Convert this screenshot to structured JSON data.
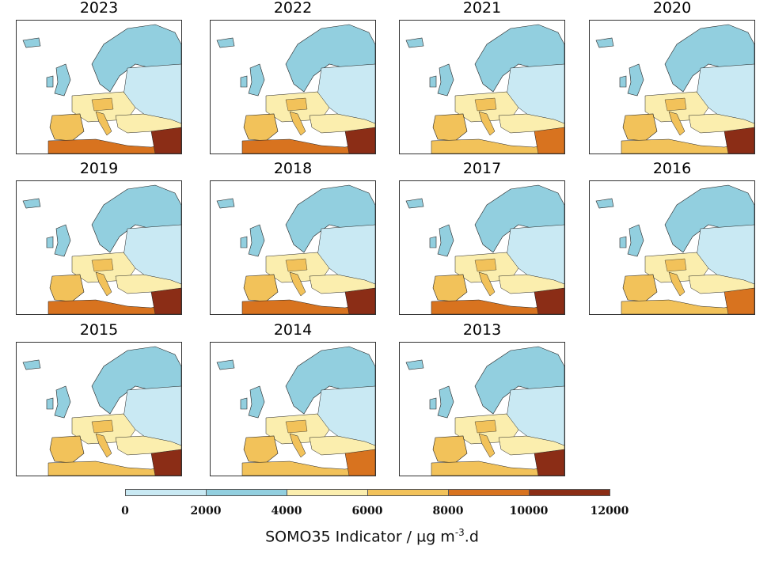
{
  "panels": [
    {
      "year": "2023",
      "intensity": 0.55
    },
    {
      "year": "2022",
      "intensity": 0.55
    },
    {
      "year": "2021",
      "intensity": 0.35
    },
    {
      "year": "2020",
      "intensity": 0.45
    },
    {
      "year": "2019",
      "intensity": 0.55
    },
    {
      "year": "2018",
      "intensity": 0.55
    },
    {
      "year": "2017",
      "intensity": 0.6
    },
    {
      "year": "2016",
      "intensity": 0.4
    },
    {
      "year": "2015",
      "intensity": 0.5
    },
    {
      "year": "2014",
      "intensity": 0.3
    },
    {
      "year": "2013",
      "intensity": 0.45
    }
  ],
  "colorbar": {
    "ticks": [
      "0",
      "2000",
      "4000",
      "6000",
      "8000",
      "10000",
      "12000"
    ],
    "colors": [
      "#c9e9f3",
      "#92cfdf",
      "#fbeeae",
      "#f2c25a",
      "#d8731f",
      "#8b2d16"
    ],
    "title_main": "SOMO35 Indicator / µg m",
    "title_sup": "-3",
    "title_end": ".d"
  },
  "colors": {
    "sea": "#ffffff",
    "border_line": "#222222"
  }
}
